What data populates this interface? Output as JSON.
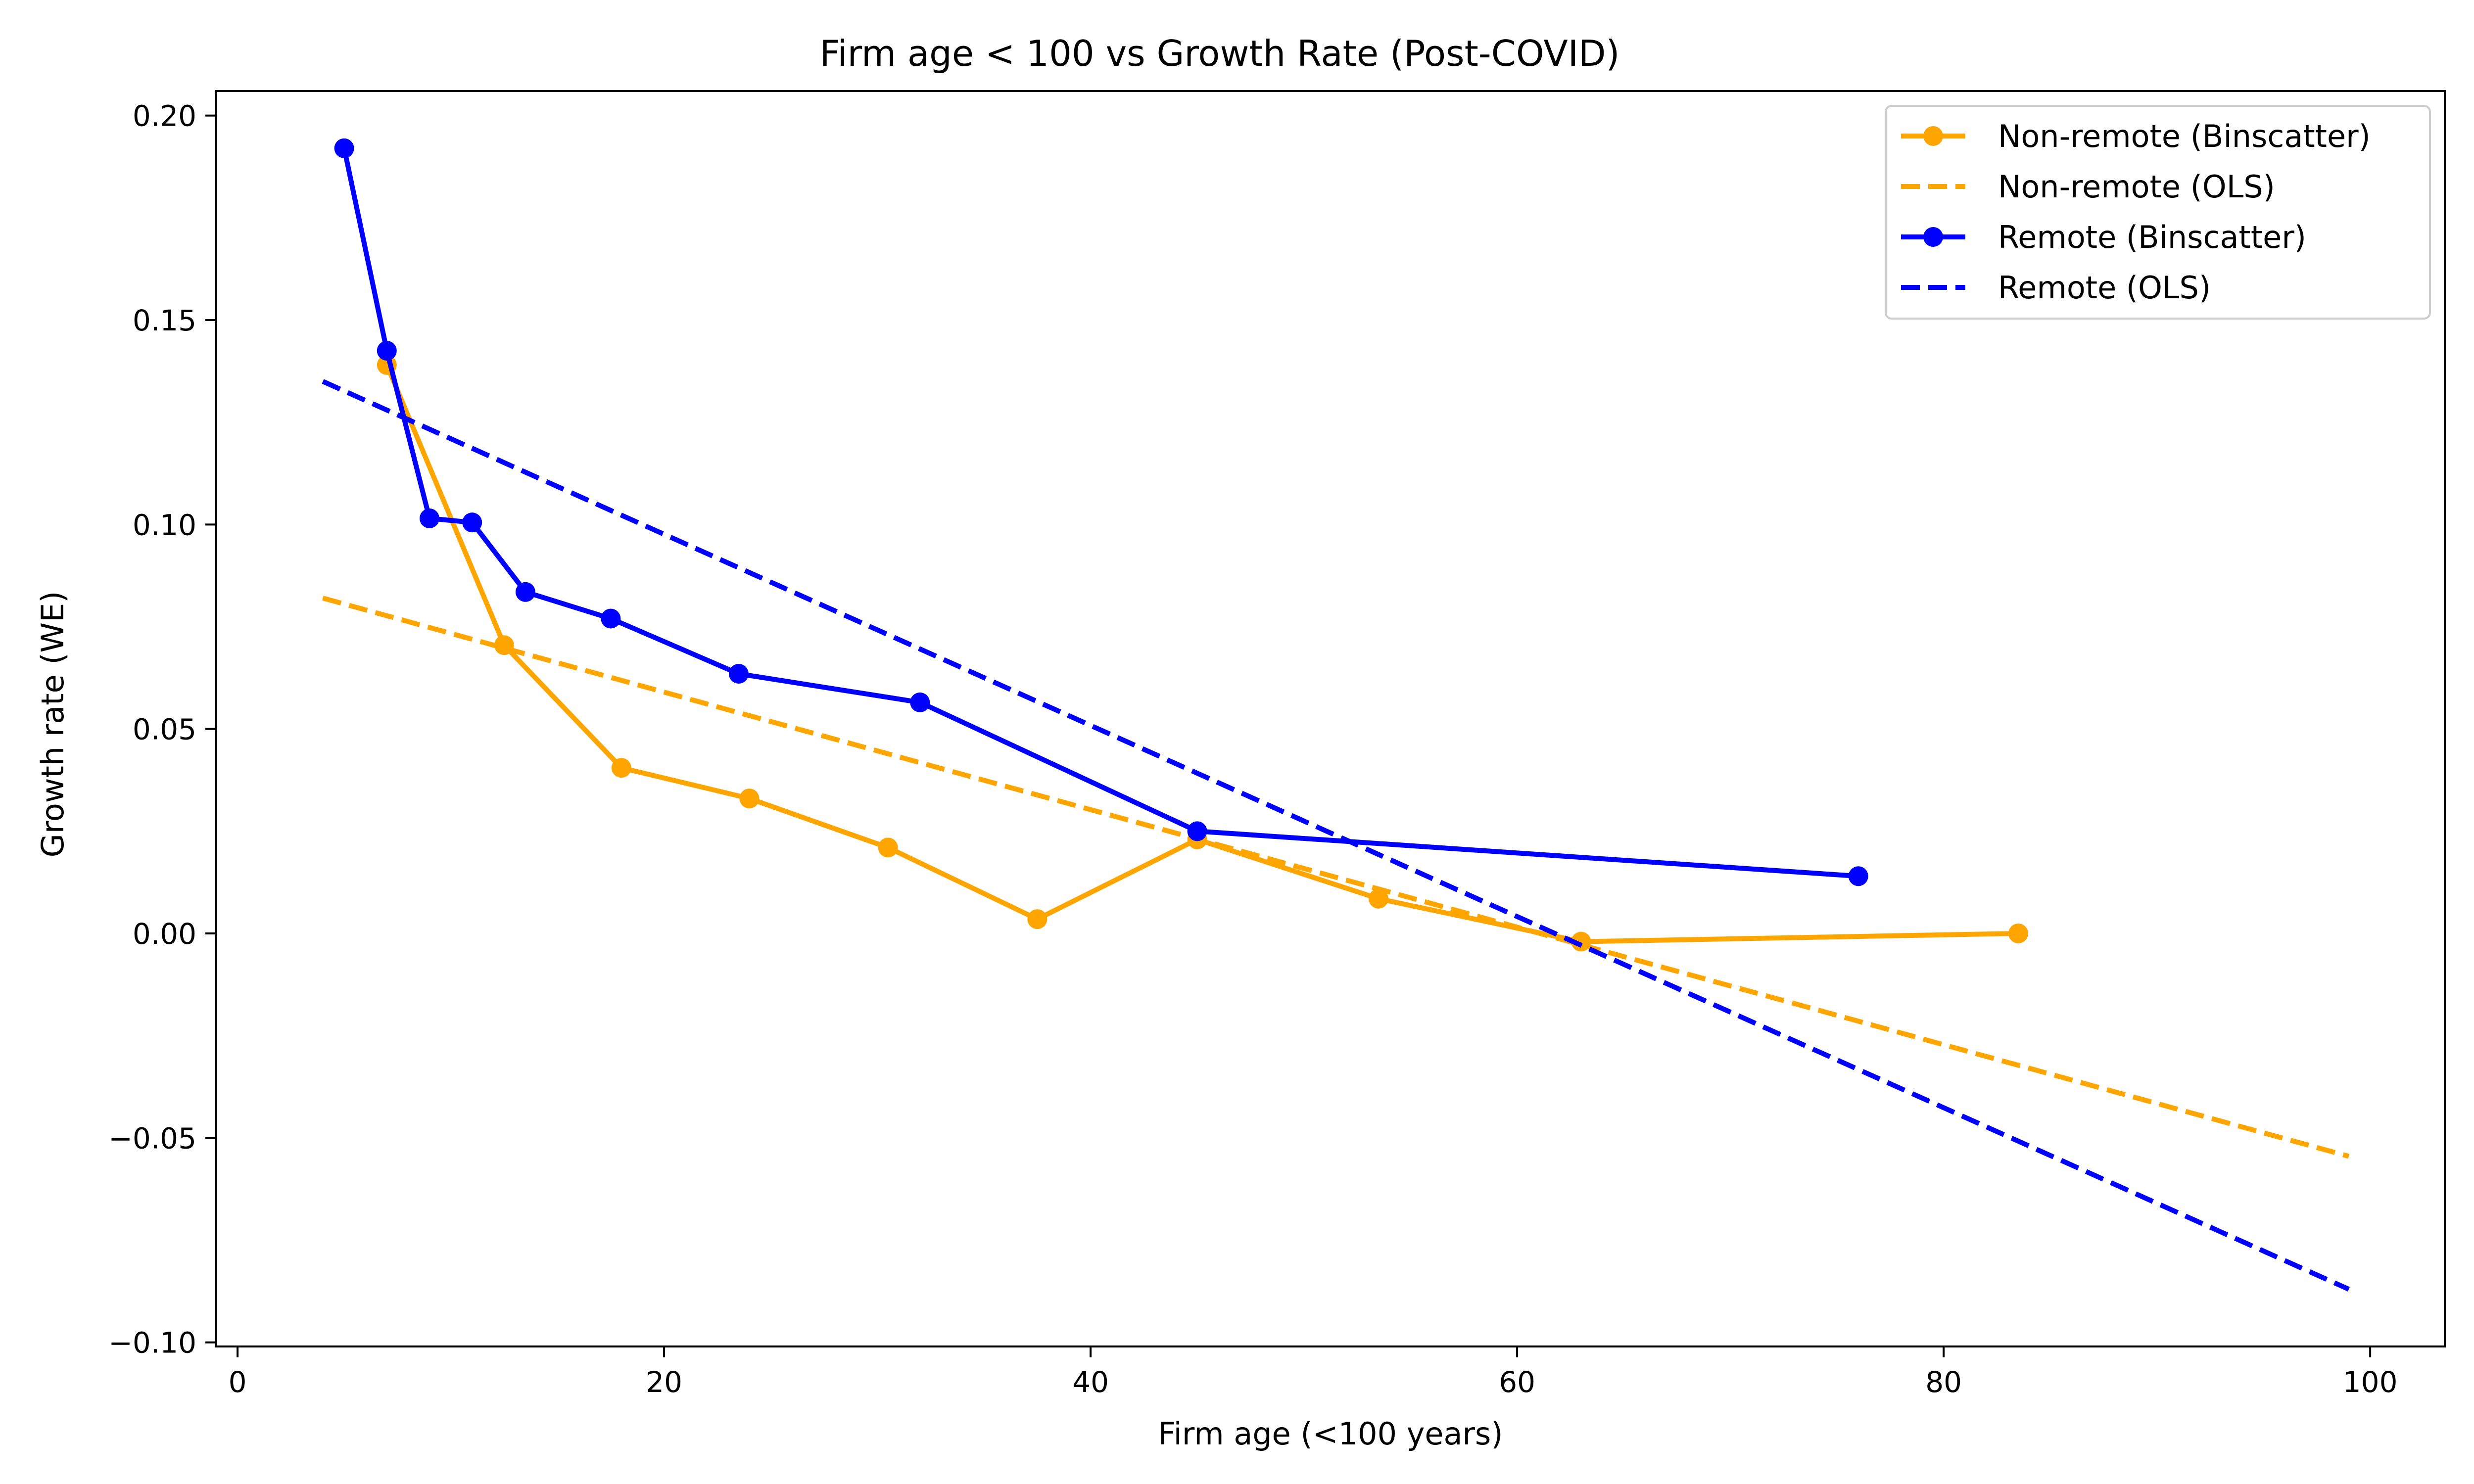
{
  "chart_data": {
    "type": "line",
    "title": "Firm age < 100 vs Growth Rate (Post-COVID)",
    "xlabel": "Firm age (<100 years)",
    "ylabel": "Growth rate (WE)",
    "xlim": [
      -1,
      103.5
    ],
    "ylim": [
      -0.101,
      0.206
    ],
    "x_ticks": [
      0,
      20,
      40,
      60,
      80,
      100
    ],
    "x_tick_labels": [
      "0",
      "20",
      "40",
      "60",
      "80",
      "100"
    ],
    "y_ticks": [
      -0.1,
      -0.05,
      0.0,
      0.05,
      0.1,
      0.15,
      0.2
    ],
    "y_tick_labels": [
      "−0.10",
      "−0.05",
      "0.00",
      "0.05",
      "0.10",
      "0.15",
      "0.20"
    ],
    "grid": false,
    "legend_position": "top-right",
    "series": [
      {
        "name": "Non-remote (Binscatter)",
        "style": "solid-marker",
        "color": "#FFA500",
        "x": [
          7.0,
          12.5,
          18.0,
          24.0,
          30.5,
          37.5,
          45.0,
          53.5,
          63.0,
          83.5
        ],
        "y": [
          0.139,
          0.0705,
          0.0405,
          0.033,
          0.021,
          0.0035,
          0.023,
          0.0085,
          -0.002,
          0.0
        ]
      },
      {
        "name": "Non-remote (OLS)",
        "style": "dashed",
        "color": "#FFA500",
        "x": [
          4.0,
          99.0
        ],
        "y": [
          0.082,
          -0.0545
        ]
      },
      {
        "name": "Remote (Binscatter)",
        "style": "solid-marker",
        "color": "#0000FF",
        "x": [
          5.0,
          7.0,
          9.0,
          11.0,
          13.5,
          17.5,
          23.5,
          32.0,
          45.0,
          76.0
        ],
        "y": [
          0.192,
          0.1425,
          0.1015,
          0.1005,
          0.0835,
          0.077,
          0.0635,
          0.0565,
          0.025,
          0.014
        ]
      },
      {
        "name": "Remote (OLS)",
        "style": "dashed",
        "color": "#0000FF",
        "x": [
          4.0,
          99.0
        ],
        "y": [
          0.135,
          -0.087
        ]
      }
    ]
  }
}
